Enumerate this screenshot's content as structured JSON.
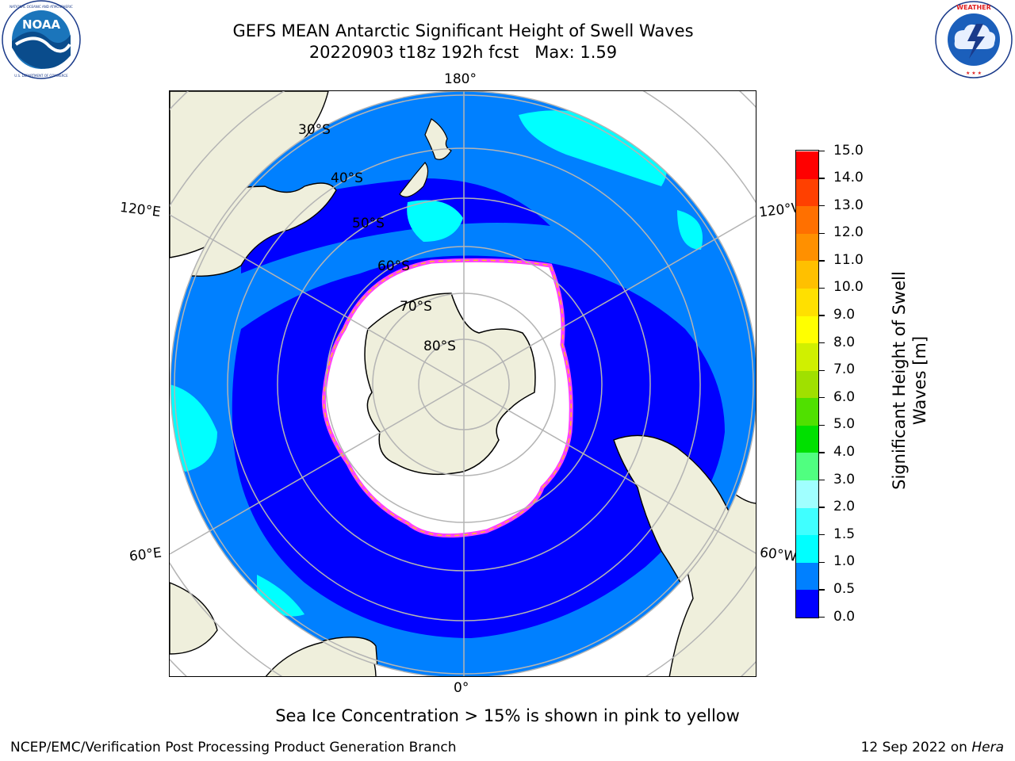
{
  "header": {
    "title_line1": "GEFS MEAN Antarctic Significant Height of Swell Waves",
    "title_line2": "20220903 t18z 192h fcst   Max: 1.59"
  },
  "logos": {
    "left": {
      "name": "noaa-logo",
      "text": "NOAA",
      "ring_text": "NATIONAL OCEANIC AND ATMOSPHERIC ADMINISTRATION · U.S. DEPARTMENT OF COMMERCE"
    },
    "right": {
      "name": "nws-logo",
      "ring_text": "NATIONAL WEATHER SERVICE"
    }
  },
  "map": {
    "projection": "south-polar-stereographic",
    "lon_labels": {
      "top": "180°",
      "bottom": "0°",
      "upper_left": "120°E",
      "upper_right": "120°W",
      "lower_left": "60°E",
      "lower_right": "60°W"
    },
    "lat_labels": [
      "30°S",
      "40°S",
      "50°S",
      "60°S",
      "70°S",
      "80°S"
    ],
    "colors": {
      "land": "#efefdc",
      "ocean_0_05": "#0000ff",
      "ocean_05_10": "#0080ff",
      "ocean_10_15": "#00ffff",
      "ice": "#ffffff",
      "ice_edge_pink": "#ff40ff",
      "ice_edge_yellow": "#ffc020",
      "grid": "#b4b4b4"
    }
  },
  "colorbar": {
    "label": "Significant Height of Swell Waves [m]",
    "label_line1": "Significant Height of Swell",
    "label_line2": "Waves [m]",
    "ticks": [
      "0.0",
      "0.5",
      "1.0",
      "1.5",
      "2.0",
      "3.0",
      "4.0",
      "5.0",
      "6.0",
      "7.0",
      "8.0",
      "9.0",
      "10.0",
      "11.0",
      "12.0",
      "13.0",
      "14.0",
      "15.0"
    ],
    "colors": [
      "#0000ff",
      "#0080ff",
      "#00ffff",
      "#40ffff",
      "#a0ffff",
      "#50ff80",
      "#00e000",
      "#50e000",
      "#a0e000",
      "#d0f000",
      "#ffff00",
      "#ffe000",
      "#ffc000",
      "#ff9000",
      "#ff7000",
      "#ff4000",
      "#ff0000"
    ]
  },
  "footer": {
    "note": "Sea Ice Concentration > 15% is shown in pink to yellow",
    "credit": "NCEP/EMC/Verification Post Processing Product Generation Branch",
    "date_prefix": "12 Sep 2022 on ",
    "machine": "Hera"
  }
}
